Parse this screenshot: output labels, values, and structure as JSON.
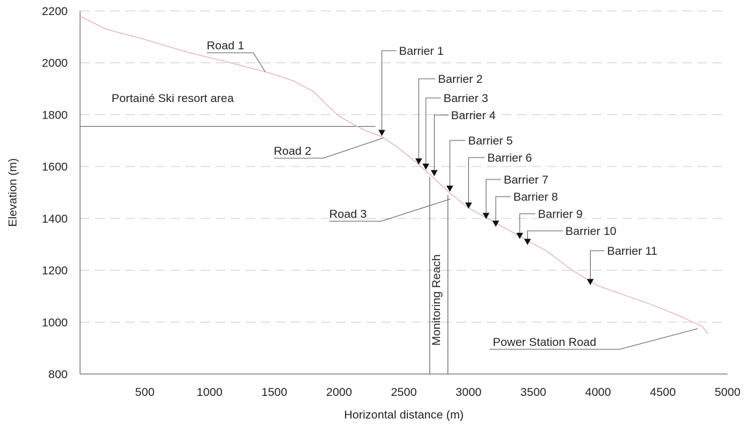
{
  "chart_data": {
    "type": "line",
    "xlabel": "Horizontal distance (m)",
    "ylabel": "Elevation (m)",
    "xlim": [
      0,
      5000
    ],
    "ylim": [
      800,
      2200
    ],
    "xticks": [
      500,
      1000,
      1500,
      2000,
      2500,
      3000,
      3500,
      4000,
      4500,
      5000
    ],
    "yticks": [
      800,
      1000,
      1200,
      1400,
      1600,
      1800,
      2000,
      2200
    ],
    "grid": "horizontal dashed",
    "colors": {
      "profile": "#e3b5bd",
      "axes": "#555555",
      "grid": "#cccccc",
      "annotation": "#666666"
    },
    "profile": {
      "x": [
        0,
        200,
        500,
        800,
        1000,
        1200,
        1400,
        1500,
        1650,
        1800,
        1900,
        2000,
        2100,
        2200,
        2330,
        2450,
        2600,
        2700,
        2850,
        3000,
        3200,
        3400,
        3600,
        3800,
        4000,
        4200,
        4400,
        4600,
        4800,
        4850
      ],
      "y": [
        2180,
        2130,
        2090,
        2045,
        2020,
        1995,
        1970,
        1955,
        1930,
        1890,
        1840,
        1795,
        1765,
        1740,
        1715,
        1675,
        1615,
        1570,
        1500,
        1440,
        1385,
        1330,
        1275,
        1200,
        1140,
        1105,
        1070,
        1030,
        985,
        955
      ]
    },
    "barriers": [
      {
        "label": "Barrier 1",
        "x": 2330,
        "y": 1715
      },
      {
        "label": "Barrier 2",
        "x": 2615,
        "y": 1605
      },
      {
        "label": "Barrier 3",
        "x": 2670,
        "y": 1585
      },
      {
        "label": "Barrier 4",
        "x": 2735,
        "y": 1560
      },
      {
        "label": "Barrier 5",
        "x": 2855,
        "y": 1500
      },
      {
        "label": "Barrier 6",
        "x": 3000,
        "y": 1435
      },
      {
        "label": "Barrier 7",
        "x": 3135,
        "y": 1395
      },
      {
        "label": "Barrier 8",
        "x": 3210,
        "y": 1365
      },
      {
        "label": "Barrier 9",
        "x": 3395,
        "y": 1318
      },
      {
        "label": "Barrier 10",
        "x": 3455,
        "y": 1295
      },
      {
        "label": "Barrier 11",
        "x": 3940,
        "y": 1140
      }
    ],
    "roads": [
      {
        "label": "Road 1",
        "x": 1430,
        "y": 1965
      },
      {
        "label": "Road 2",
        "x": 2340,
        "y": 1710
      },
      {
        "label": "Road 3",
        "x": 2860,
        "y": 1475
      },
      {
        "label": "Power Station Road",
        "x": 4770,
        "y": 975
      }
    ],
    "ski_area": {
      "label": "Portainé Ski resort area",
      "y": 1755
    },
    "monitoring_reach": {
      "label": "Monitoring Reach",
      "x_start": 2700,
      "x_end": 2840
    }
  }
}
